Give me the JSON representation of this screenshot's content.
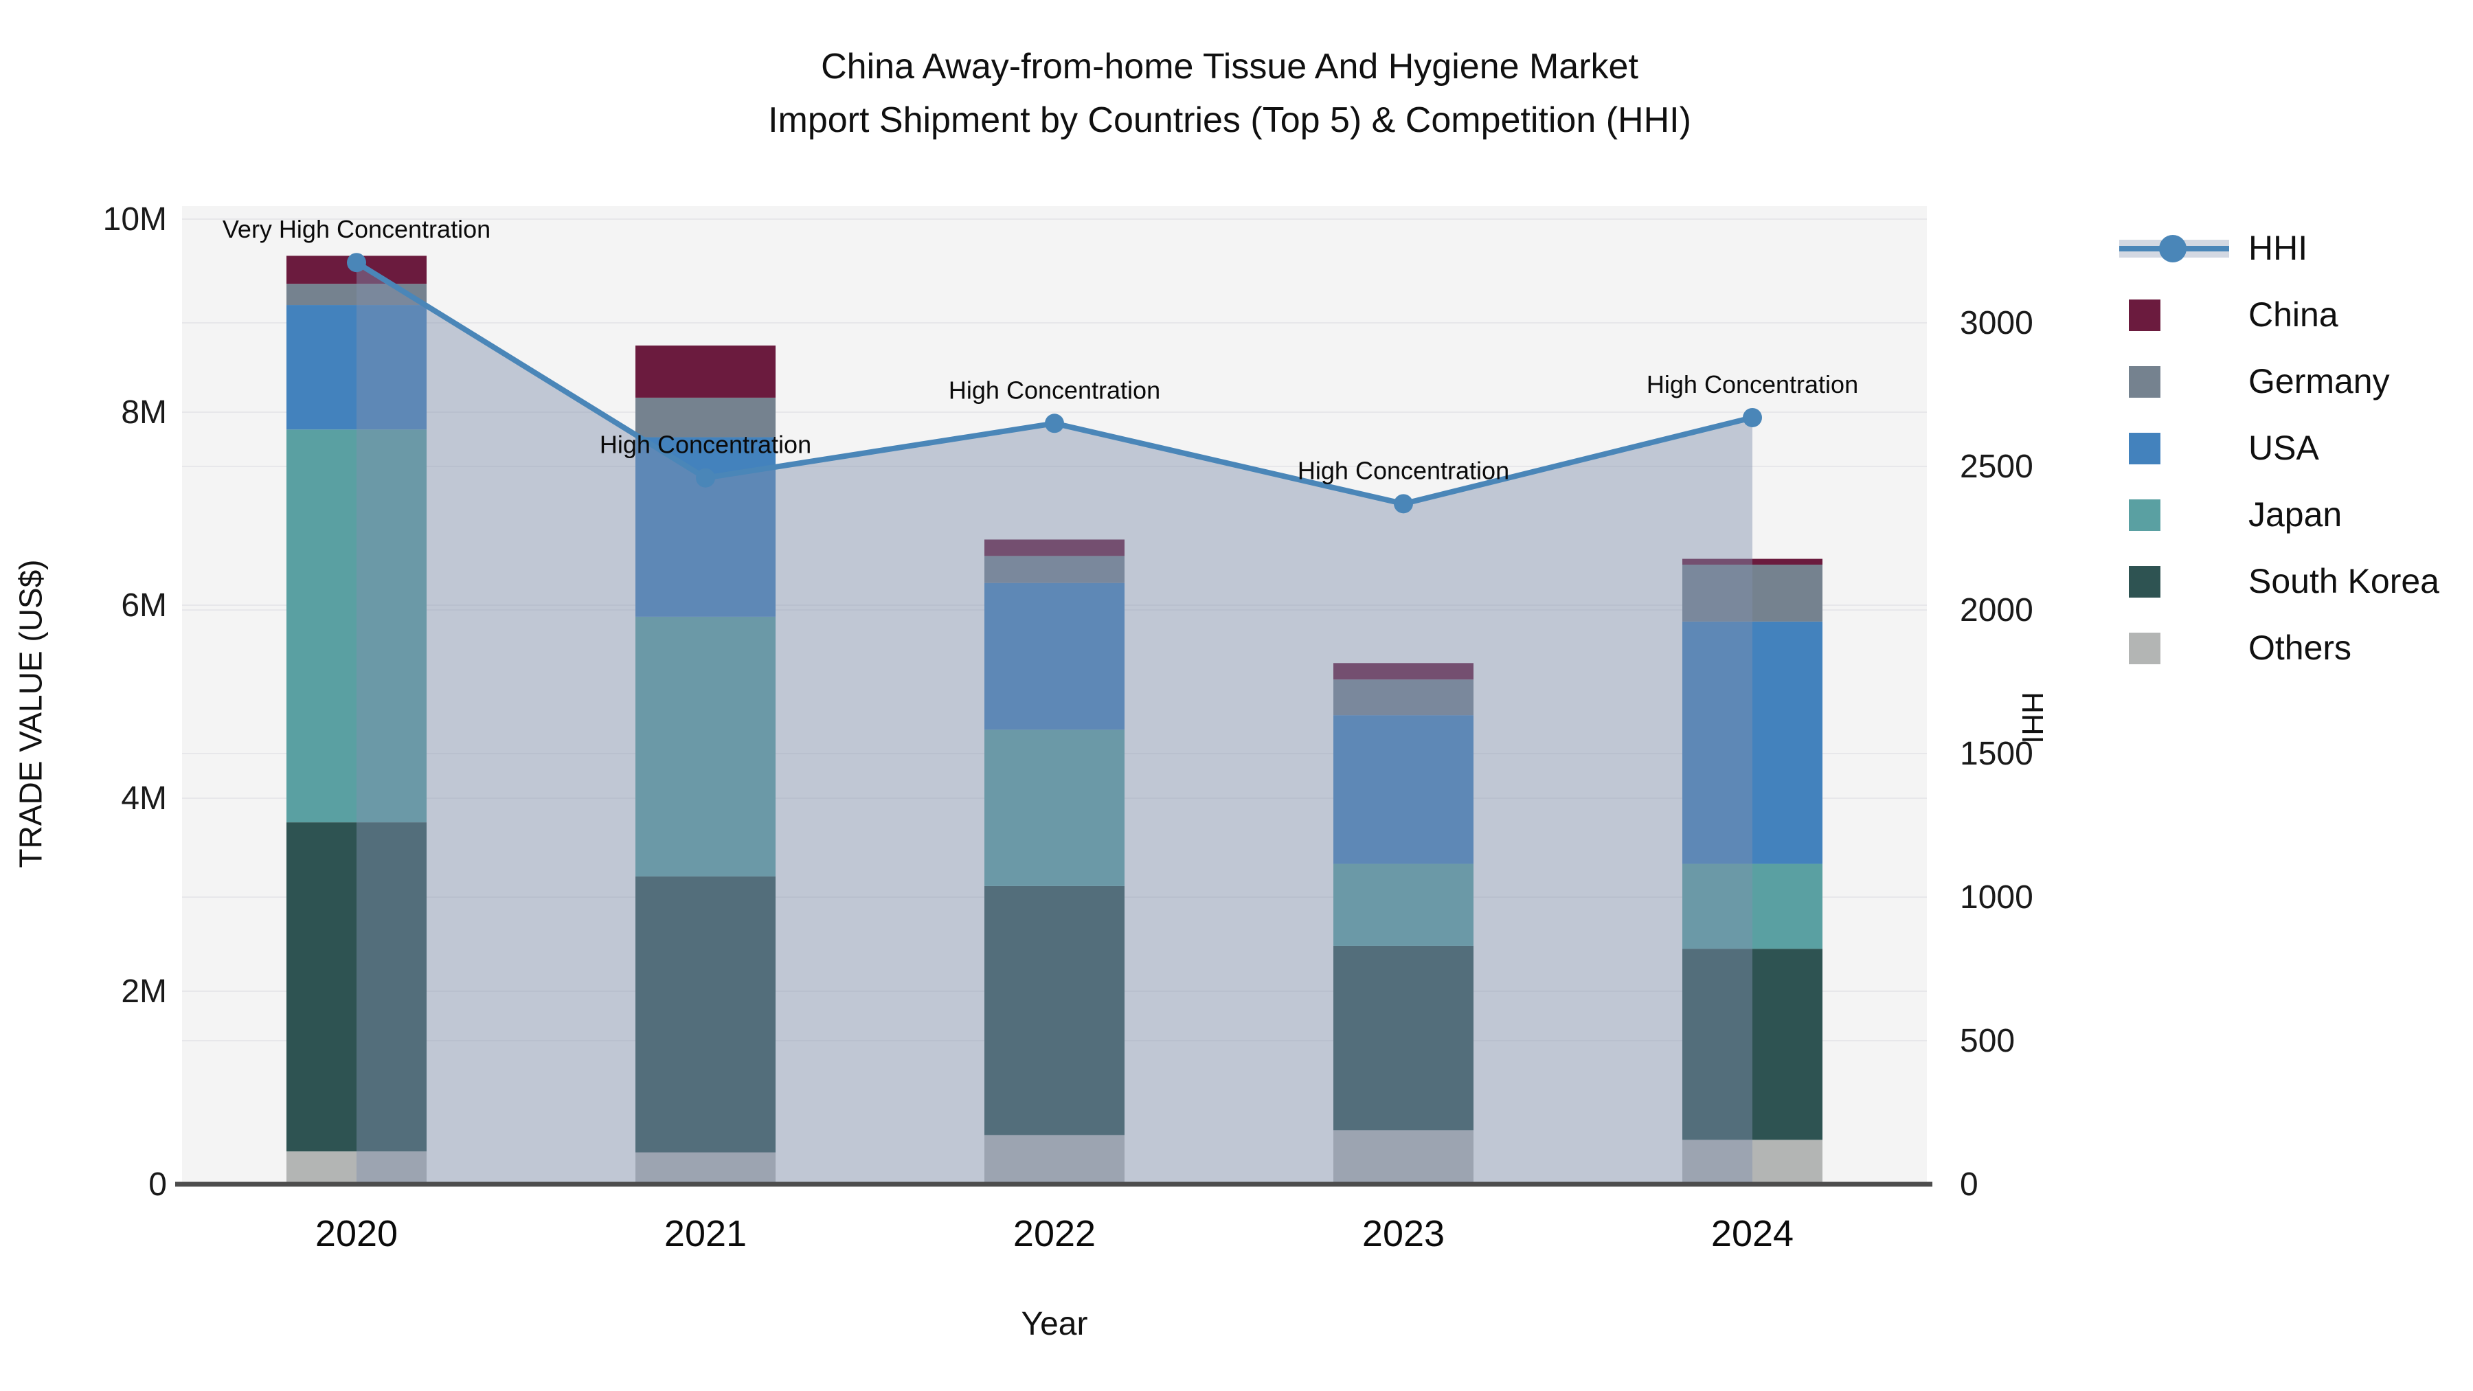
{
  "title": {
    "line1": "China Away-from-home Tissue And Hygiene Market",
    "line2": "Import Shipment by Countries (Top 5) & Competition (HHI)"
  },
  "axes": {
    "y_left": {
      "title": "TRADE VALUE (US$)",
      "tick_labels": [
        "0",
        "2M",
        "4M",
        "6M",
        "8M",
        "10M"
      ],
      "tick_values": [
        0,
        2,
        4,
        6,
        8,
        10
      ],
      "range": [
        0,
        10.3
      ],
      "unit": "million US$"
    },
    "y_right": {
      "title": "HHI",
      "tick_labels": [
        "0",
        "500",
        "1000",
        "1500",
        "2000",
        "2500",
        "3000"
      ],
      "tick_values": [
        0,
        500,
        1000,
        1500,
        2000,
        2500,
        3000
      ],
      "range": [
        0,
        3360
      ]
    },
    "x": {
      "title": "Year",
      "tick_labels": [
        "2020",
        "2021",
        "2022",
        "2023",
        "2024"
      ]
    }
  },
  "legend": {
    "items": [
      {
        "label": "HHI",
        "type": "line",
        "color": "#4a86b8"
      },
      {
        "label": "China",
        "type": "box",
        "color": "#6b1b3e"
      },
      {
        "label": "Germany",
        "type": "box",
        "color": "#75828f"
      },
      {
        "label": "USA",
        "type": "box",
        "color": "#4382bd"
      },
      {
        "label": "Japan",
        "type": "box",
        "color": "#5aa0a2"
      },
      {
        "label": "South Korea",
        "type": "box",
        "color": "#2e5352"
      },
      {
        "label": "Others",
        "type": "box",
        "color": "#b3b5b4"
      }
    ]
  },
  "colors": {
    "hhi_line": "#4a86b8",
    "hhi_area": "rgba(128,144,172,0.45)",
    "plot_bg": "#f4f4f4",
    "gridline": "#e7e7ea",
    "axis_line": "#4d4d4d",
    "text": "#111111"
  },
  "chart_data": {
    "type": "bar+line (stacked bars, dual y-axis)",
    "categories": [
      "2020",
      "2021",
      "2022",
      "2023",
      "2024"
    ],
    "bar_unit": "million US$",
    "stack_order_bottom_to_top": [
      "Others",
      "South Korea",
      "Japan",
      "USA",
      "Germany",
      "China"
    ],
    "series": [
      {
        "name": "Others",
        "color": "#b3b5b4",
        "values": [
          0.34,
          0.33,
          0.51,
          0.56,
          0.46
        ]
      },
      {
        "name": "South Korea",
        "color": "#2e5352",
        "values": [
          3.41,
          2.86,
          2.58,
          1.91,
          1.98
        ]
      },
      {
        "name": "Japan",
        "color": "#5aa0a2",
        "values": [
          4.07,
          2.69,
          1.62,
          0.85,
          0.88
        ]
      },
      {
        "name": "USA",
        "color": "#4382bd",
        "values": [
          1.29,
          1.86,
          1.52,
          1.54,
          2.51
        ]
      },
      {
        "name": "Germany",
        "color": "#75828f",
        "values": [
          0.22,
          0.41,
          0.28,
          0.37,
          0.59
        ]
      },
      {
        "name": "China",
        "color": "#6b1b3e",
        "values": [
          0.29,
          0.54,
          0.17,
          0.17,
          0.06
        ]
      }
    ],
    "bar_totals": [
      9.62,
      8.69,
      6.68,
      5.4,
      6.48
    ],
    "hhi": {
      "name": "HHI",
      "axis": "right",
      "values": [
        3210,
        2460,
        2650,
        2370,
        2670
      ],
      "area_fill": true
    },
    "annotations": [
      {
        "x": "2020",
        "text": "Very High Concentration"
      },
      {
        "x": "2021",
        "text": "High Concentration"
      },
      {
        "x": "2022",
        "text": "High Concentration"
      },
      {
        "x": "2023",
        "text": "High Concentration"
      },
      {
        "x": "2024",
        "text": "High Concentration"
      }
    ],
    "title": "China Away-from-home Tissue And Hygiene Market Import Shipment by Countries (Top 5) & Competition (HHI)",
    "xlabel": "Year",
    "ylabel_left": "TRADE VALUE (US$)",
    "ylabel_right": "HHI",
    "ylim_left": [
      0,
      10.3
    ],
    "ylim_right": [
      0,
      3360
    ],
    "grid": true,
    "legend_position": "right"
  }
}
